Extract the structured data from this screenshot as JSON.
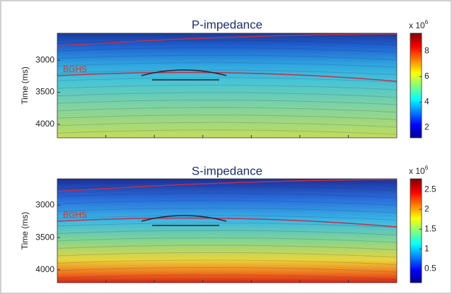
{
  "chart_data": [
    {
      "type": "heatmap",
      "title": "P-impedance",
      "y_label": "Time (ms)",
      "ylim": [
        2580,
        4210
      ],
      "yticks": [
        3000,
        3500,
        4000
      ],
      "horizon_label": "BGHS",
      "colormap": "jet",
      "colorbar_label": "x 10",
      "colorbar_exponent": "6",
      "clim": [
        1.2,
        9.4
      ],
      "cticks": [
        2,
        4,
        6,
        8
      ]
    },
    {
      "type": "heatmap",
      "title": "S-impedance",
      "y_label": "Time (ms)",
      "ylim": [
        2590,
        4200
      ],
      "yticks": [
        3000,
        3500,
        4000
      ],
      "horizon_label": "BGHS",
      "colormap": "jet",
      "colorbar_label": "x 10",
      "colorbar_exponent": "6",
      "clim": [
        0.15,
        2.77
      ],
      "cticks": [
        0.5,
        1,
        1.5,
        2,
        2.5
      ]
    }
  ]
}
